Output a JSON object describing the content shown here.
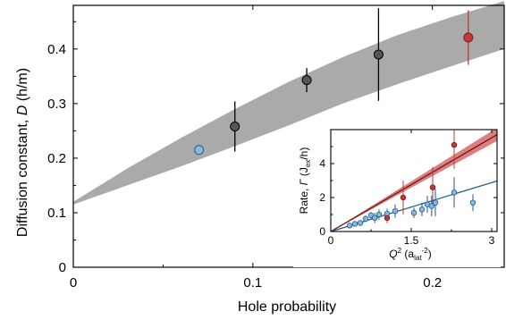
{
  "chart_data": [
    {
      "type": "scatter",
      "xlabel": "Hole probability",
      "ylabel": "Diffusion constant, D (ħ/m̃)",
      "ylabel_parts": {
        "main": "Diffusion constant, ",
        "var": "D",
        "unit": " (h/m)"
      },
      "xlim": [
        0,
        0.24
      ],
      "ylim": [
        0,
        0.48
      ],
      "x_ticks": [
        0,
        0.1,
        0.2
      ],
      "x_tick_labels": [
        "0",
        "0.1",
        "0.2"
      ],
      "y_ticks": [
        0,
        0.1,
        0.2,
        0.3,
        0.4
      ],
      "y_tick_labels": [
        "0",
        "0.1",
        "0.2",
        "0.3",
        "0.4"
      ],
      "grid": false,
      "band": {
        "x": [
          0,
          0.03,
          0.06,
          0.09,
          0.12,
          0.15,
          0.18,
          0.21,
          0.24
        ],
        "lower": [
          0.115,
          0.15,
          0.185,
          0.222,
          0.26,
          0.3,
          0.335,
          0.368,
          0.4
        ],
        "upper": [
          0.12,
          0.181,
          0.237,
          0.29,
          0.34,
          0.385,
          0.425,
          0.458,
          0.488
        ],
        "color": "#aaaaaa"
      },
      "points": [
        {
          "x": 0.07,
          "y": 0.215,
          "err": 0.0,
          "color": "#8ab6e2"
        },
        {
          "x": 0.09,
          "y": 0.258,
          "err": 0.046,
          "color": "#555555"
        },
        {
          "x": 0.13,
          "y": 0.343,
          "err": 0.022,
          "color": "#555555"
        },
        {
          "x": 0.17,
          "y": 0.39,
          "err": 0.085,
          "color": "#555555"
        },
        {
          "x": 0.22,
          "y": 0.421,
          "err": 0.05,
          "color": "#c03838"
        }
      ]
    },
    {
      "type": "scatter",
      "xlabel": "Q² (a_lat⁻²)",
      "xlabel_parts": {
        "var": "Q",
        "sup": "2",
        "open": " (a",
        "sub": "lat",
        "sup2": "-2",
        "close": ")"
      },
      "ylabel": "Rate, Γ (J_ex/h)",
      "ylabel_parts": {
        "main": "Rate, ",
        "var": "Γ",
        "open": " (J",
        "sub": "ex",
        "close": "/h)"
      },
      "xlim": [
        0,
        3.1
      ],
      "ylim": [
        0,
        6.0
      ],
      "x_ticks": [
        0,
        1.5,
        3
      ],
      "x_tick_labels": [
        "0",
        "1.5",
        "3"
      ],
      "y_ticks": [
        0,
        2,
        4
      ],
      "y_tick_labels": [
        "0",
        "2",
        "4"
      ],
      "series": [
        {
          "color": "#c03838",
          "fit_slope": 1.84,
          "band": {
            "slope_low": 1.72,
            "slope_high": 1.97
          },
          "points": [
            {
              "x": 1.05,
              "y": 0.8,
              "err": 0.3
            },
            {
              "x": 1.35,
              "y": 2.0,
              "err": 1.0
            },
            {
              "x": 1.9,
              "y": 2.6,
              "err": 1.2
            },
            {
              "x": 2.3,
              "y": 5.1,
              "err": 1.4
            }
          ]
        },
        {
          "color": "#1f5d8c",
          "fit_slope": 0.96,
          "points": [
            {
              "x": 0.35,
              "y": 0.35,
              "err": 0.1
            },
            {
              "x": 0.45,
              "y": 0.45,
              "err": 0.1
            },
            {
              "x": 0.55,
              "y": 0.5,
              "err": 0.1
            },
            {
              "x": 0.65,
              "y": 0.75,
              "err": 0.2
            },
            {
              "x": 0.75,
              "y": 0.95,
              "err": 0.2
            },
            {
              "x": 0.82,
              "y": 0.8,
              "err": 0.3
            },
            {
              "x": 0.9,
              "y": 1.0,
              "err": 0.3
            },
            {
              "x": 1.05,
              "y": 1.05,
              "err": 0.3
            },
            {
              "x": 1.2,
              "y": 1.2,
              "err": 0.4
            },
            {
              "x": 1.55,
              "y": 1.1,
              "err": 0.3
            },
            {
              "x": 1.7,
              "y": 1.3,
              "err": 0.4
            },
            {
              "x": 1.8,
              "y": 1.6,
              "err": 0.5
            },
            {
              "x": 1.88,
              "y": 1.5,
              "err": 0.6
            },
            {
              "x": 1.95,
              "y": 1.7,
              "err": 0.8
            },
            {
              "x": 2.3,
              "y": 2.3,
              "err": 0.9
            },
            {
              "x": 2.65,
              "y": 1.7,
              "err": 0.5
            }
          ],
          "point_color": "#8ab6e2"
        }
      ]
    }
  ]
}
